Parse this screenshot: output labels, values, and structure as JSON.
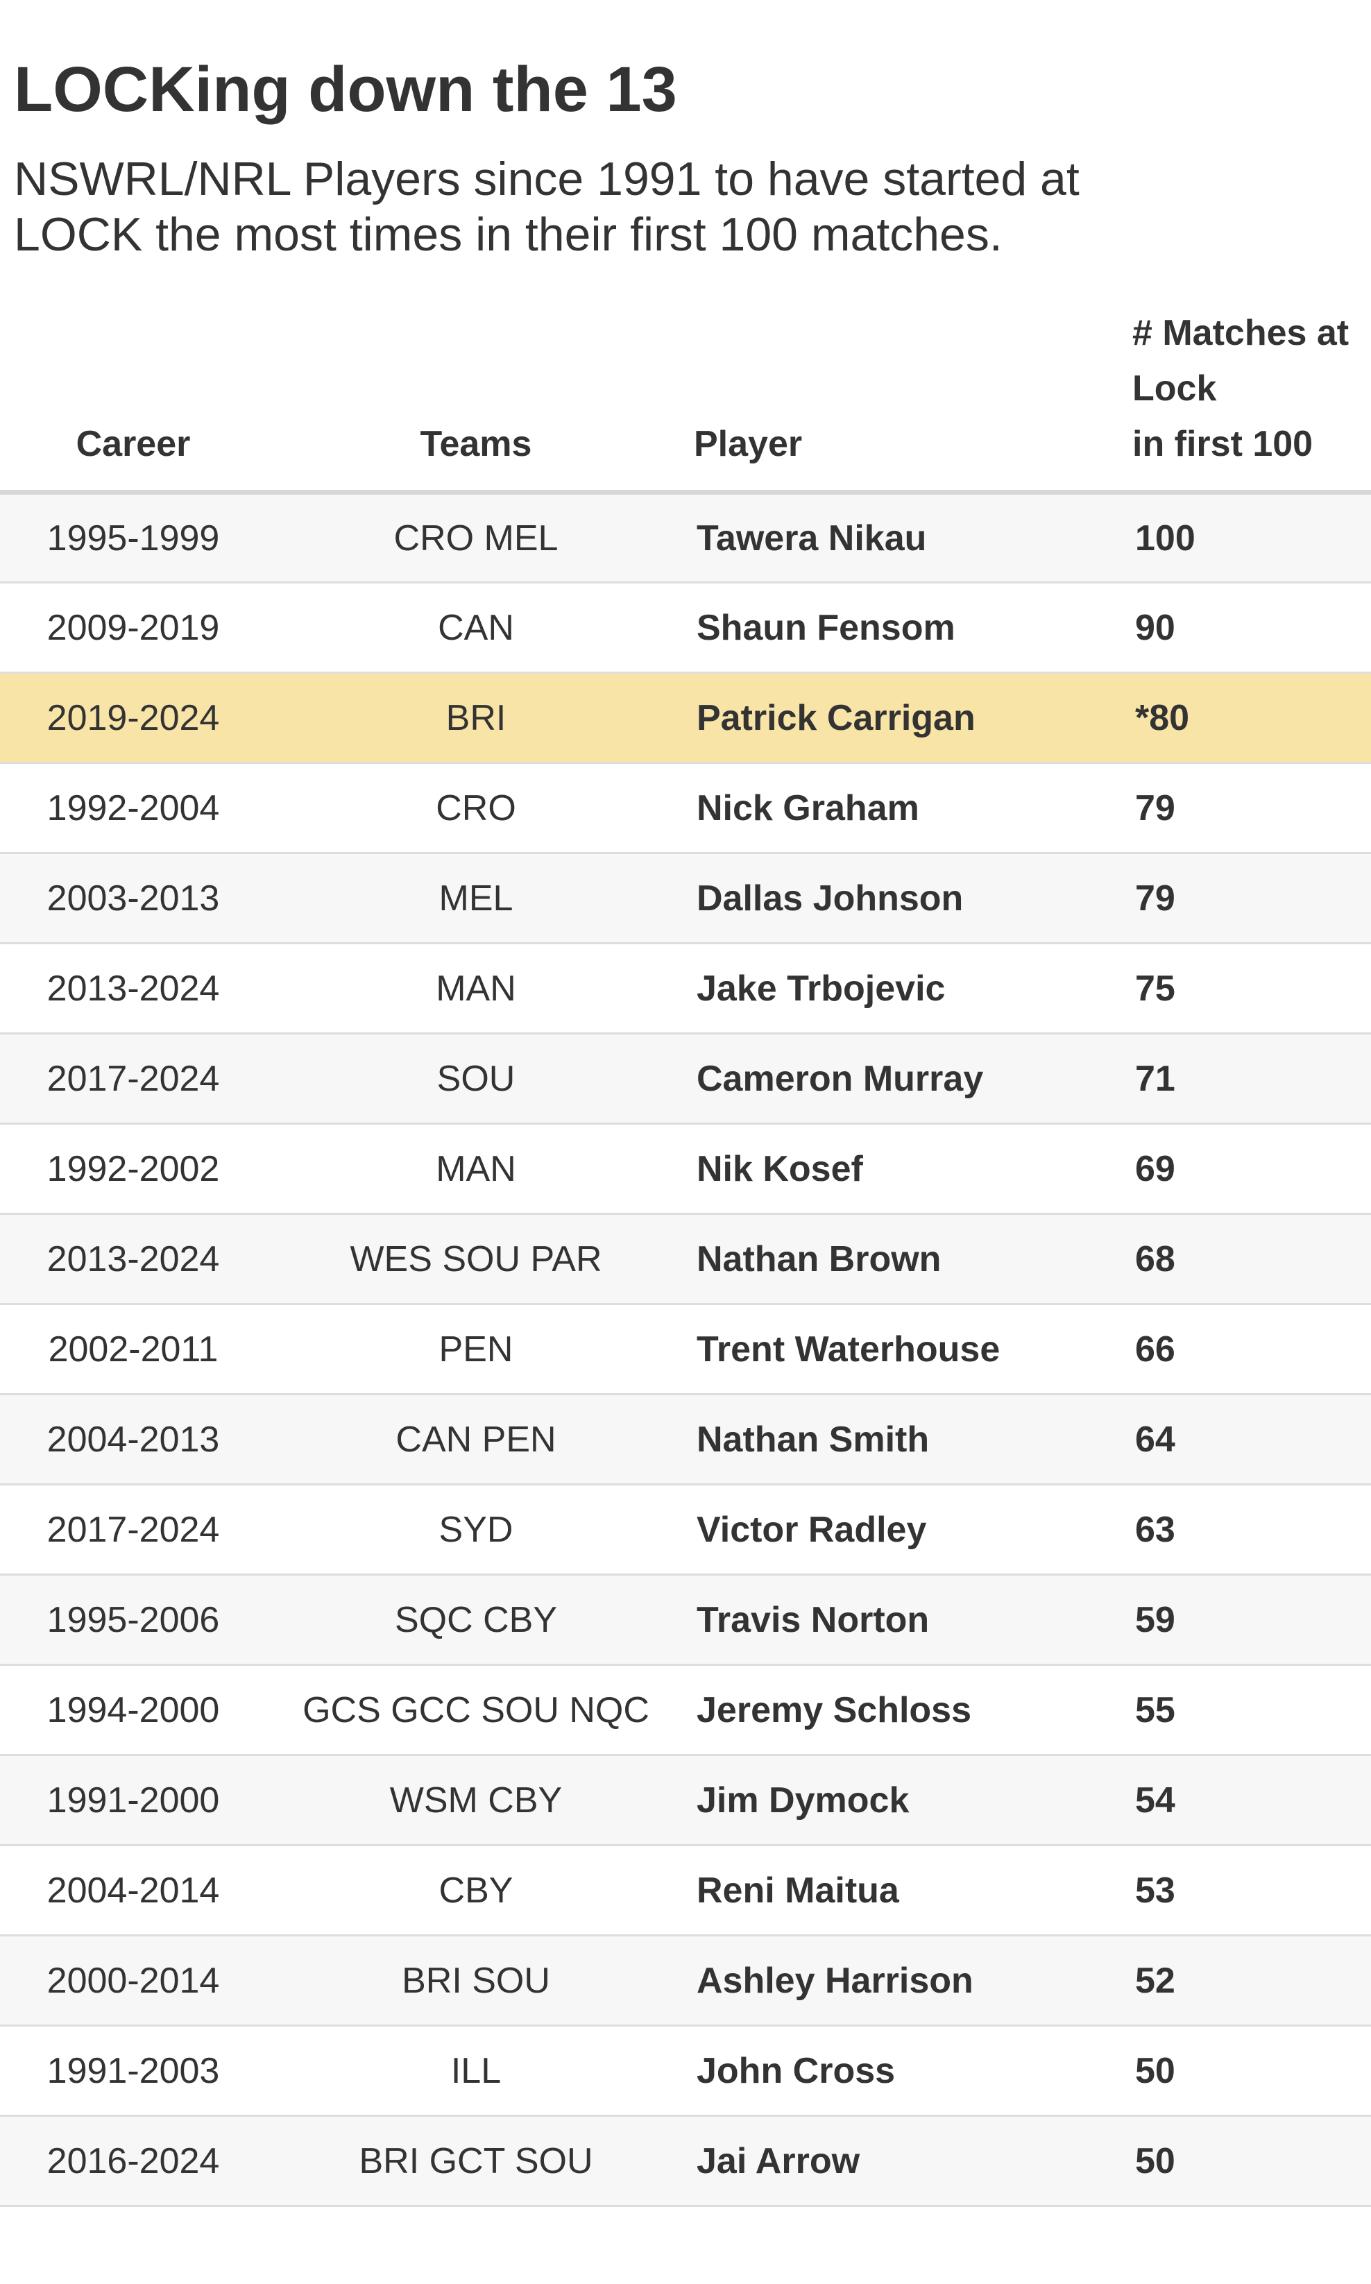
{
  "title": "LOCKing down the 13",
  "subtitle": "NSWRL/NRL Players since 1991 to have started at LOCK the most times in their first 100 matches.",
  "columns": {
    "career": "Career",
    "teams": "Teams",
    "player": "Player",
    "lock": "# Matches at Lock\nin first 100"
  },
  "highlight_color": "#f9e4a7",
  "rows": [
    {
      "career": "1995-1999",
      "teams": "CRO MEL",
      "player": "Tawera Nikau",
      "lock": "100",
      "highlight": false
    },
    {
      "career": "2009-2019",
      "teams": "CAN",
      "player": "Shaun Fensom",
      "lock": "90",
      "highlight": false
    },
    {
      "career": "2019-2024",
      "teams": "BRI",
      "player": "Patrick Carrigan",
      "lock": "*80",
      "highlight": true
    },
    {
      "career": "1992-2004",
      "teams": "CRO",
      "player": "Nick Graham",
      "lock": "79",
      "highlight": false
    },
    {
      "career": "2003-2013",
      "teams": "MEL",
      "player": "Dallas Johnson",
      "lock": "79",
      "highlight": false
    },
    {
      "career": "2013-2024",
      "teams": "MAN",
      "player": "Jake Trbojevic",
      "lock": "75",
      "highlight": false
    },
    {
      "career": "2017-2024",
      "teams": "SOU",
      "player": "Cameron Murray",
      "lock": "71",
      "highlight": false
    },
    {
      "career": "1992-2002",
      "teams": "MAN",
      "player": "Nik Kosef",
      "lock": "69",
      "highlight": false
    },
    {
      "career": "2013-2024",
      "teams": "WES SOU PAR",
      "player": "Nathan Brown",
      "lock": "68",
      "highlight": false
    },
    {
      "career": "2002-2011",
      "teams": "PEN",
      "player": "Trent Waterhouse",
      "lock": "66",
      "highlight": false
    },
    {
      "career": "2004-2013",
      "teams": "CAN PEN",
      "player": "Nathan Smith",
      "lock": "64",
      "highlight": false
    },
    {
      "career": "2017-2024",
      "teams": "SYD",
      "player": "Victor Radley",
      "lock": "63",
      "highlight": false
    },
    {
      "career": "1995-2006",
      "teams": "SQC CBY",
      "player": "Travis Norton",
      "lock": "59",
      "highlight": false
    },
    {
      "career": "1994-2000",
      "teams": "GCS GCC SOU NQC",
      "player": "Jeremy Schloss",
      "lock": "55",
      "highlight": false
    },
    {
      "career": "1991-2000",
      "teams": "WSM CBY",
      "player": "Jim Dymock",
      "lock": "54",
      "highlight": false
    },
    {
      "career": "2004-2014",
      "teams": "CBY",
      "player": "Reni Maitua",
      "lock": "53",
      "highlight": false
    },
    {
      "career": "2000-2014",
      "teams": "BRI SOU",
      "player": "Ashley Harrison",
      "lock": "52",
      "highlight": false
    },
    {
      "career": "1991-2003",
      "teams": "ILL",
      "player": "John Cross",
      "lock": "50",
      "highlight": false
    },
    {
      "career": "2016-2024",
      "teams": "BRI GCT SOU",
      "player": "Jai Arrow",
      "lock": "50",
      "highlight": false
    }
  ]
}
